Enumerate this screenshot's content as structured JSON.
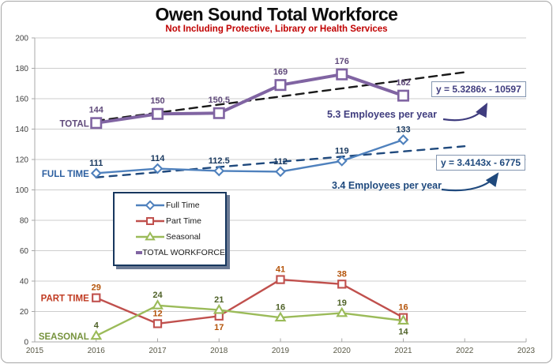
{
  "title": "Owen Sound Total Workforce",
  "subtitle": "Not Including Protective, Library or Health Services",
  "chart_data": {
    "type": "line",
    "x": [
      2016,
      2017,
      2018,
      2019,
      2020,
      2021
    ],
    "x_ticks": [
      2015,
      2016,
      2017,
      2018,
      2019,
      2020,
      2021,
      2022,
      2023
    ],
    "y_ticks": [
      0,
      20,
      40,
      60,
      80,
      100,
      120,
      140,
      160,
      180,
      200
    ],
    "xlim": [
      2015,
      2023
    ],
    "ylim": [
      0,
      200
    ],
    "grid": "horizontal",
    "series": [
      {
        "name": "Full Time",
        "tag": "FULL TIME",
        "tag_color": "#2c5fa0",
        "marker": "diamond",
        "color": "#4f81bd",
        "label_color": "#17375e",
        "values": [
          111,
          114,
          112.5,
          112,
          119,
          133
        ],
        "labels_below": []
      },
      {
        "name": "Part Time",
        "tag": "PART TIME",
        "tag_color": "#c03b22",
        "marker": "square",
        "color": "#c0504d",
        "label_color": "#b45309",
        "values": [
          29,
          12,
          17,
          41,
          38,
          16
        ],
        "labels_below": [
          2
        ]
      },
      {
        "name": "Seasonal",
        "tag": "SEASONAL",
        "tag_color": "#76923c",
        "marker": "triangle",
        "color": "#9bbb59",
        "label_color": "#4f6228",
        "values": [
          4,
          24,
          21,
          16,
          19,
          14
        ],
        "labels_below": [
          5
        ]
      },
      {
        "name": "TOTAL WORKFORCE",
        "tag": "TOTAL",
        "tag_color": "#604a7b",
        "marker": "square",
        "color": "#8064a2",
        "label_color": "#604a7b",
        "thick": true,
        "values": [
          144,
          150,
          150.5,
          169,
          176,
          162
        ],
        "labels_below": []
      }
    ],
    "trendlines": [
      {
        "for": "TOTAL WORKFORCE",
        "slope": 5.3286,
        "intercept": -10597,
        "x_start": 2016,
        "x_end": 2022,
        "color": "#1a1a1a",
        "equation": "y = 5.3286x - 10597",
        "annotation": "5.3 Employees per year"
      },
      {
        "for": "Full Time",
        "slope": 3.4143,
        "intercept": -6775,
        "x_start": 2016,
        "x_end": 2022,
        "color": "#1f497d",
        "equation": "y = 3.4143x - 6775",
        "annotation": "3.4 Employees per year"
      }
    ],
    "legend": {
      "position": "middle-left",
      "items": [
        "Full Time",
        "Part Time",
        "Seasonal",
        "TOTAL WORKFORCE"
      ]
    }
  }
}
